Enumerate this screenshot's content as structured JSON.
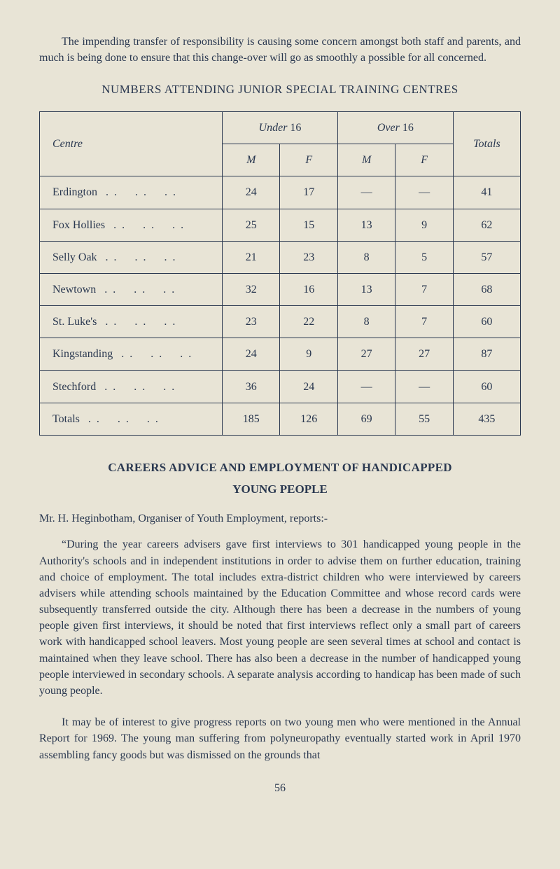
{
  "intro_paragraph": "The impending transfer of responsibility is causing some concern amongst both staff and parents, and much is being done to ensure that this change-over will go as smoothly a possible for all concerned.",
  "table_title": "NUMBERS ATTENDING JUNIOR SPECIAL TRAINING CENTRES",
  "table": {
    "header_centre": "Centre",
    "header_under": "Under",
    "header_under_num": " 16",
    "header_over": "Over",
    "header_over_num": " 16",
    "header_totals": "Totals",
    "sub_M": "M",
    "sub_F": "F",
    "rows": [
      {
        "name": "Erdington",
        "um": "24",
        "uf": "17",
        "om": "—",
        "of": "—",
        "tot": "41"
      },
      {
        "name": "Fox Hollies",
        "um": "25",
        "uf": "15",
        "om": "13",
        "of": "9",
        "tot": "62"
      },
      {
        "name": "Selly Oak",
        "um": "21",
        "uf": "23",
        "om": "8",
        "of": "5",
        "tot": "57"
      },
      {
        "name": "Newtown",
        "um": "32",
        "uf": "16",
        "om": "13",
        "of": "7",
        "tot": "68"
      },
      {
        "name": "St. Luke's",
        "um": "23",
        "uf": "22",
        "om": "8",
        "of": "7",
        "tot": "60"
      },
      {
        "name": "Kingstanding",
        "um": "24",
        "uf": "9",
        "om": "27",
        "of": "27",
        "tot": "87"
      },
      {
        "name": "Stechford",
        "um": "36",
        "uf": "24",
        "om": "—",
        "of": "—",
        "tot": "60"
      }
    ],
    "totals_row": {
      "name": "Totals",
      "um": "185",
      "uf": "126",
      "om": "69",
      "of": "55",
      "tot": "435"
    }
  },
  "section_title": "CAREERS ADVICE AND EMPLOYMENT OF HANDICAPPED",
  "section_subtitle": "YOUNG PEOPLE",
  "author_line": "Mr. H. Heginbotham, Organiser of Youth Employment, reports:-",
  "body_p1": "“During the year careers advisers gave first interviews to 301 handicapped young people in the Authority's schools and in independent institutions in order to advise them on further education, training and choice of employment. The total includes extra-district children who were interviewed by careers advisers while attending schools maintained by the Education Committee and whose record cards were subsequently transferred outside the city. Although there has been a decrease in the numbers of young people given first interviews, it should be noted that first interviews reflect only a small part of careers work with handicapped school leavers. Most young people are seen several times at school and contact is maintained when they leave school. There has also been a decrease in the number of handicapped young people interviewed in secondary schools. A separate analysis according to handicap has been made of such young people.",
  "body_p2": "It may be of interest to give progress reports on two young men who were mentioned in the Annual Report for 1969. The young man suffering from polyneuropathy eventually started work in April 1970 assembling fancy goods but was dismissed on the grounds that",
  "page_number": "56",
  "colors": {
    "background": "#e8e4d6",
    "text": "#2a3850",
    "border": "#2a3850"
  }
}
